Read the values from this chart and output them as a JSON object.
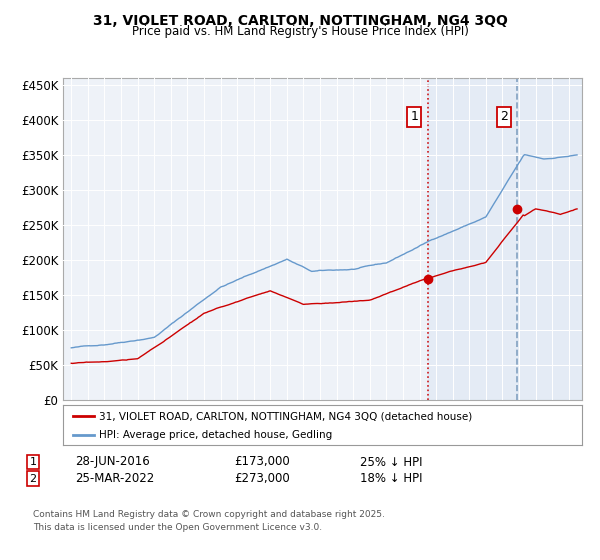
{
  "title_line1": "31, VIOLET ROAD, CARLTON, NOTTINGHAM, NG4 3QQ",
  "title_line2": "Price paid vs. HM Land Registry's House Price Index (HPI)",
  "legend_property": "31, VIOLET ROAD, CARLTON, NOTTINGHAM, NG4 3QQ (detached house)",
  "legend_hpi": "HPI: Average price, detached house, Gedling",
  "annotation1": {
    "num": "1",
    "date": "28-JUN-2016",
    "price": "£173,000",
    "note": "25% ↓ HPI"
  },
  "annotation2": {
    "num": "2",
    "date": "25-MAR-2022",
    "price": "£273,000",
    "note": "18% ↓ HPI"
  },
  "footer": "Contains HM Land Registry data © Crown copyright and database right 2025.\nThis data is licensed under the Open Government Licence v3.0.",
  "property_color": "#cc0000",
  "hpi_color": "#6699cc",
  "vline1_x": 2016.49,
  "vline1_color": "#cc0000",
  "vline1_style": "dotted",
  "vline2_x": 2021.9,
  "vline2_color": "#7799bb",
  "vline2_style": "dashed",
  "shade_start": 2016.49,
  "shade_end": 2025.5,
  "marker1_price": 173000,
  "marker2_price": 273000,
  "ylim": [
    0,
    460000
  ],
  "xlim": [
    1994.5,
    2025.8
  ],
  "yticks": [
    0,
    50000,
    100000,
    150000,
    200000,
    250000,
    300000,
    350000,
    400000,
    450000
  ],
  "ytick_labels": [
    "£0",
    "£50K",
    "£100K",
    "£150K",
    "£200K",
    "£250K",
    "£300K",
    "£350K",
    "£400K",
    "£450K"
  ],
  "xticks": [
    1995,
    1996,
    1997,
    1998,
    1999,
    2000,
    2001,
    2002,
    2003,
    2004,
    2005,
    2006,
    2007,
    2008,
    2009,
    2010,
    2011,
    2012,
    2013,
    2014,
    2015,
    2016,
    2017,
    2018,
    2019,
    2020,
    2021,
    2022,
    2023,
    2024,
    2025
  ],
  "background_color": "#ffffff",
  "plot_bg_color": "#eef2f8"
}
